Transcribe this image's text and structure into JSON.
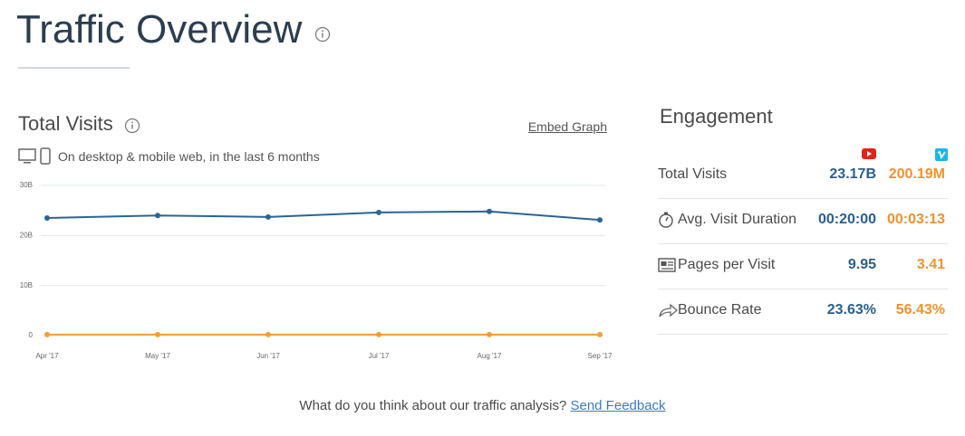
{
  "header": {
    "title": "Traffic Overview"
  },
  "chart_data": {
    "type": "line",
    "title": "Total Visits",
    "subtitle": "On desktop & mobile web, in the last 6 months",
    "categories": [
      "Apr '17",
      "May '17",
      "Jun '17",
      "Jul '17",
      "Aug '17",
      "Sep '17"
    ],
    "series": [
      {
        "color": "#2c6496",
        "values": [
          23500000000,
          24000000000,
          23700000000,
          24600000000,
          24800000000,
          23100000000
        ]
      },
      {
        "color": "#f5a033",
        "values": [
          200000000,
          200000000,
          200000000,
          200000000,
          200000000,
          200000000
        ]
      }
    ],
    "ylim": [
      0,
      30000000000
    ],
    "yticks": [
      0,
      {
        "value": 10000000000,
        "label": "10B"
      },
      {
        "value": 20000000000,
        "label": "20B"
      },
      {
        "value": 30000000000,
        "label": "30B"
      }
    ],
    "grid": true
  },
  "actions": {
    "embed": "Embed Graph"
  },
  "engagement": {
    "title": "Engagement",
    "rows": [
      [
        "Total Visits",
        "23.17B",
        "200.19M"
      ],
      [
        "Avg. Visit Duration",
        "00:20:00",
        "00:03:13"
      ],
      [
        "Pages per Visit",
        "9.95",
        "3.41"
      ],
      [
        "Bounce Rate",
        "23.63%",
        "56.43%"
      ]
    ]
  },
  "feedback": {
    "question": "What do you think about our traffic analysis?",
    "link": "Send Feedback"
  }
}
